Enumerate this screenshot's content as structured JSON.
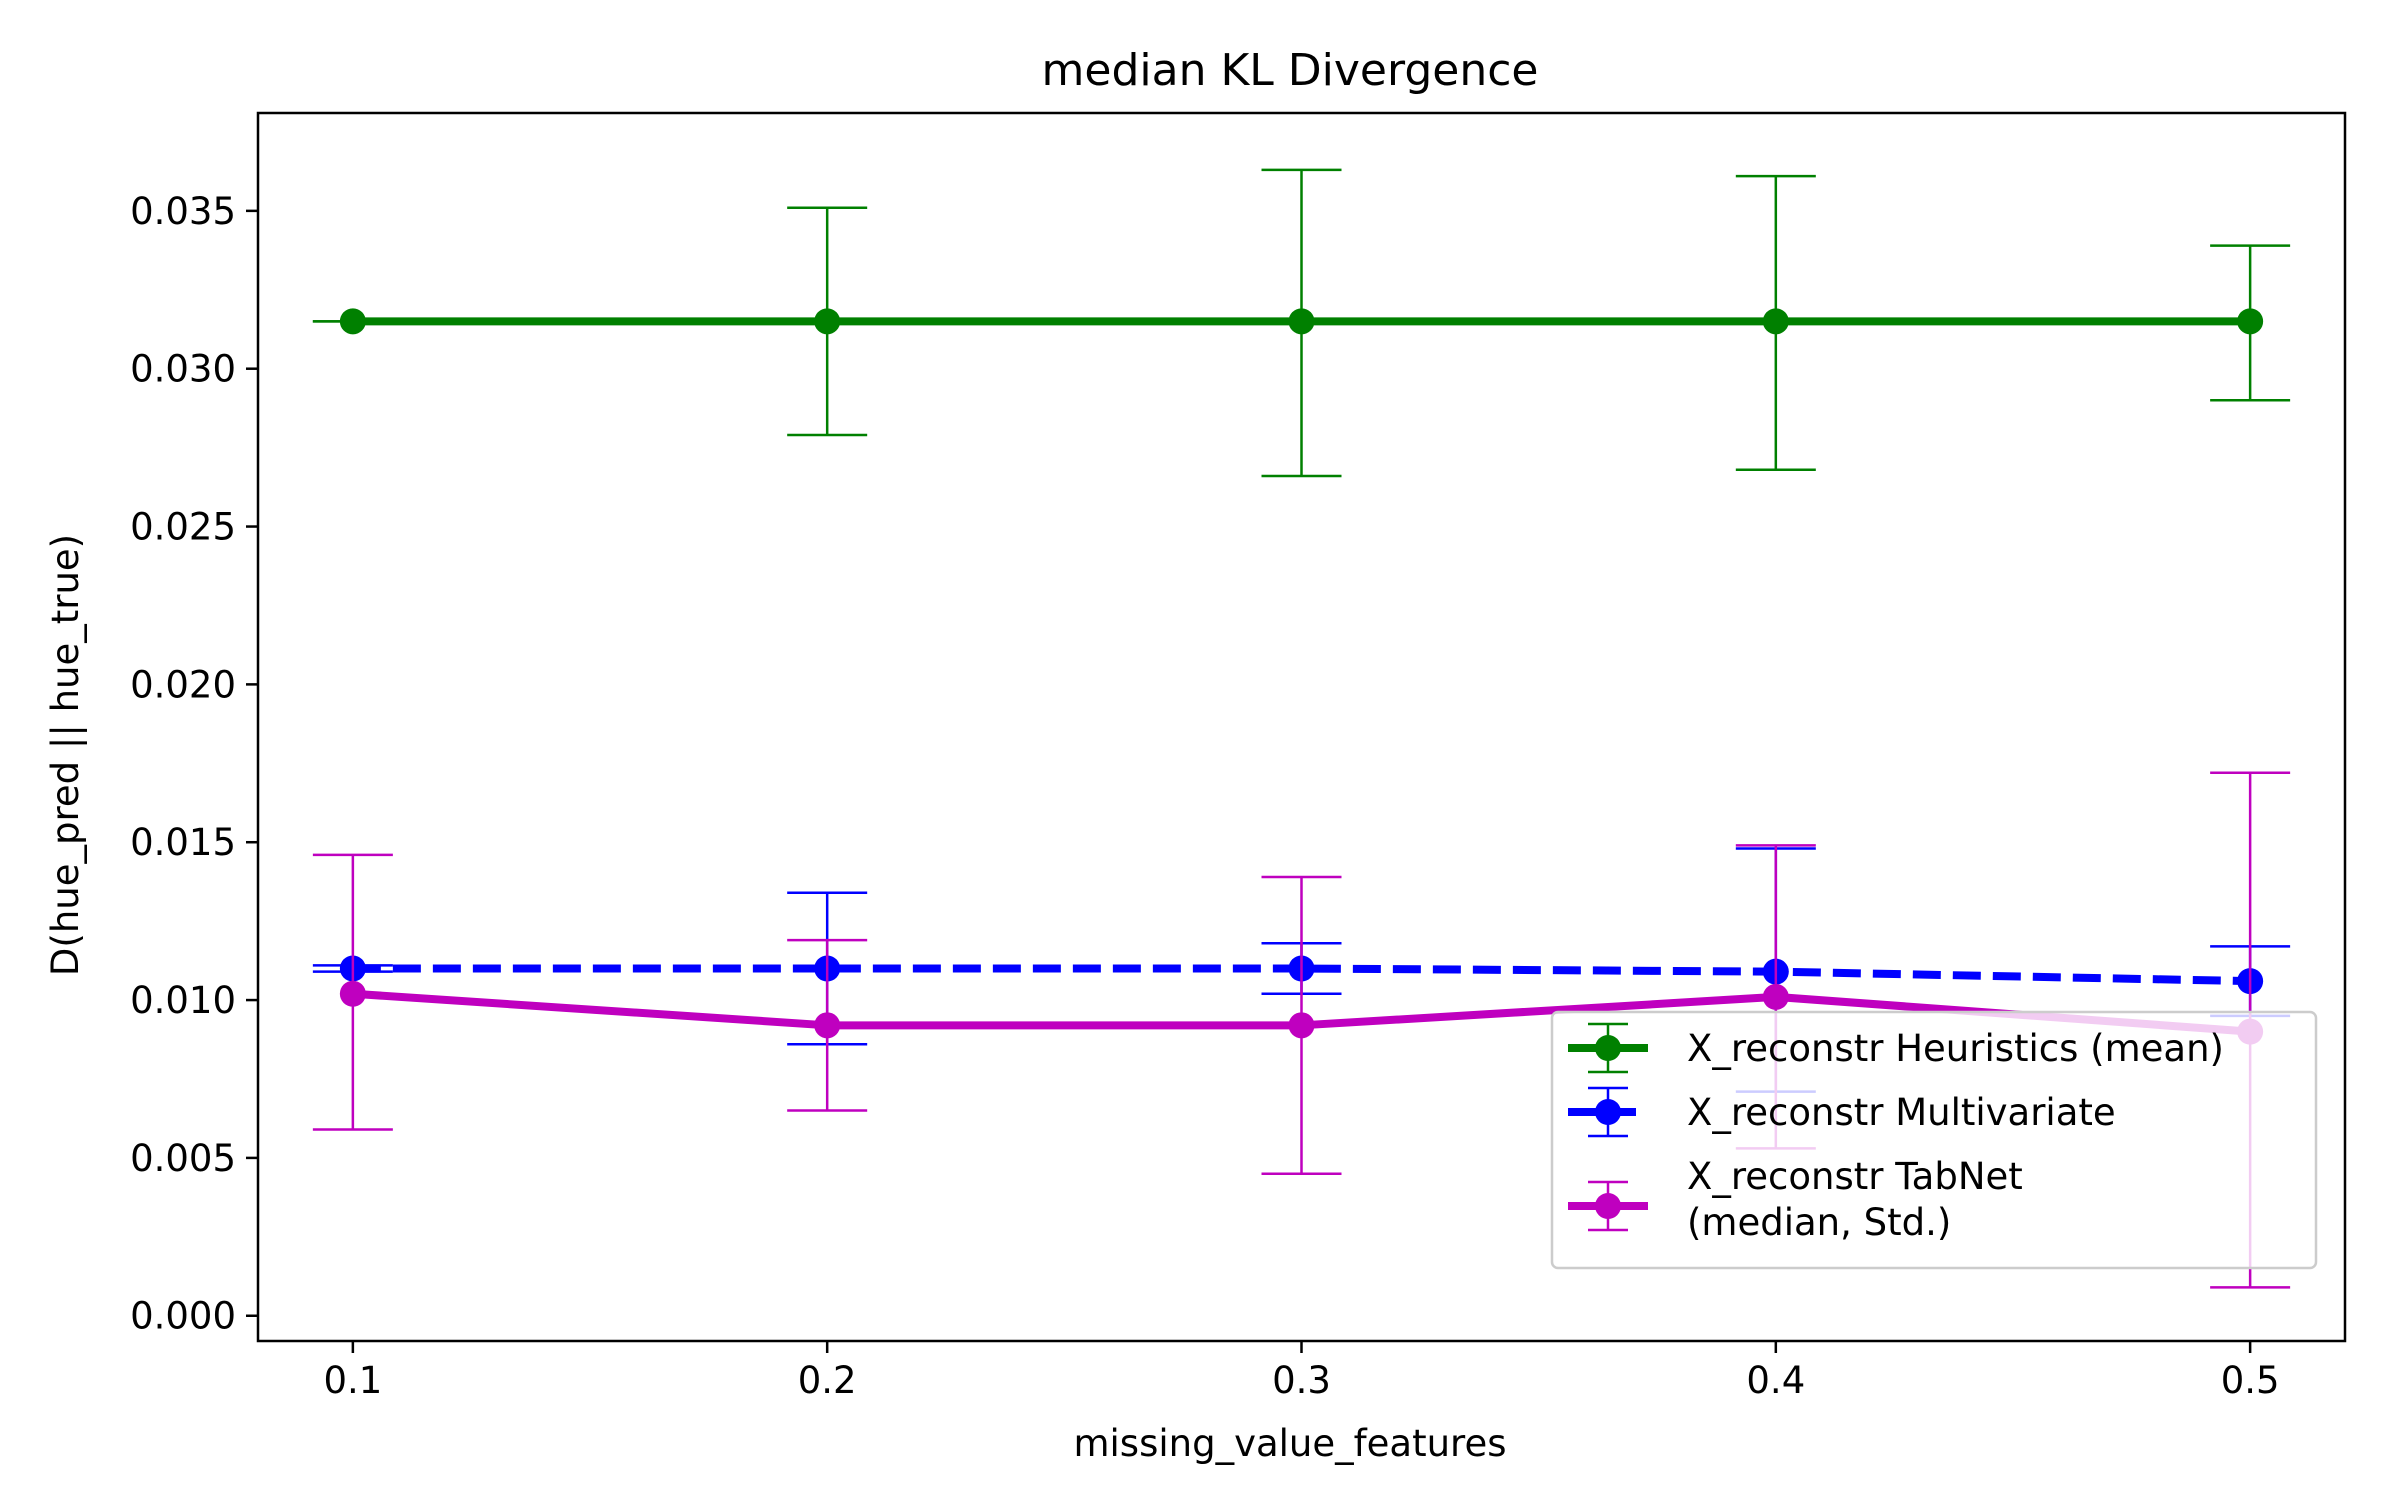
{
  "chart_data": {
    "type": "line",
    "title": "median KL Divergence",
    "xlabel": "missing_value_features",
    "ylabel": "D(hue_pred || hue_true)",
    "x": [
      0.1,
      0.2,
      0.3,
      0.4,
      0.5
    ],
    "x_ticks": [
      "0.1",
      "0.2",
      "0.3",
      "0.4",
      "0.5"
    ],
    "y_ticks": [
      "0.000",
      "0.005",
      "0.010",
      "0.015",
      "0.020",
      "0.025",
      "0.030",
      "0.035"
    ],
    "xlim": [
      0.08,
      0.52
    ],
    "ylim": [
      -0.0008,
      0.0381
    ],
    "grid": false,
    "legend_position": "lower right",
    "series": [
      {
        "name": "X_reconstr Heuristics (mean)",
        "color": "#008000",
        "line_style": "solid",
        "values": [
          0.0315,
          0.0315,
          0.0315,
          0.0315,
          0.0315
        ],
        "err_low": [
          0.0315,
          0.0279,
          0.0266,
          0.0268,
          0.029
        ],
        "err_high": [
          0.0315,
          0.0351,
          0.0363,
          0.0361,
          0.0339
        ]
      },
      {
        "name": "X_reconstr Multivariate",
        "color": "#0000ff",
        "line_style": "dashed",
        "values": [
          0.011,
          0.011,
          0.011,
          0.0109,
          0.0106
        ],
        "err_low": [
          0.0109,
          0.0086,
          0.0102,
          0.0071,
          0.0095
        ],
        "err_high": [
          0.0111,
          0.0134,
          0.0118,
          0.0148,
          0.0117
        ]
      },
      {
        "name": "X_reconstr TabNet\n(median, Std.)",
        "color": "#bf00bf",
        "line_style": "solid",
        "values": [
          0.0102,
          0.0092,
          0.0092,
          0.0101,
          0.009
        ],
        "err_low": [
          0.0059,
          0.0065,
          0.0045,
          0.0053,
          0.0009
        ],
        "err_high": [
          0.0146,
          0.0119,
          0.0139,
          0.0149,
          0.0172
        ]
      }
    ]
  }
}
